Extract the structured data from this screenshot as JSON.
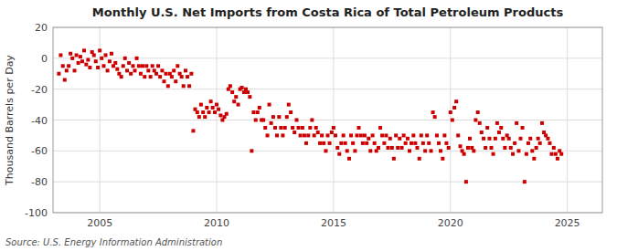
{
  "chart_data": {
    "type": "scatter",
    "title": "Monthly U.S. Net Imports from Costa Rica of Total Petroleum Products",
    "y_label": "Thousand Barrels per Day",
    "annotation": "Source: U.S. Energy Information Administration",
    "color": "#cc0000",
    "marker": "square",
    "grid": true,
    "xlim": [
      2003.0,
      2026.5
    ],
    "ylim": [
      -100,
      20
    ],
    "xticks": [
      2005,
      2010,
      2015,
      2020,
      2025
    ],
    "yticks": [
      -100,
      -80,
      -60,
      -40,
      -20,
      0,
      20
    ],
    "x": [
      2003.25,
      2003.33,
      2003.42,
      2003.5,
      2003.58,
      2003.67,
      2003.75,
      2003.83,
      2003.92,
      2004.0,
      2004.08,
      2004.17,
      2004.25,
      2004.33,
      2004.42,
      2004.5,
      2004.58,
      2004.67,
      2004.75,
      2004.83,
      2004.92,
      2005.0,
      2005.08,
      2005.17,
      2005.25,
      2005.33,
      2005.42,
      2005.5,
      2005.58,
      2005.67,
      2005.75,
      2005.83,
      2005.92,
      2006.0,
      2006.08,
      2006.17,
      2006.25,
      2006.33,
      2006.42,
      2006.5,
      2006.58,
      2006.67,
      2006.75,
      2006.83,
      2006.92,
      2007.0,
      2007.08,
      2007.17,
      2007.25,
      2007.33,
      2007.42,
      2007.5,
      2007.58,
      2007.67,
      2007.75,
      2007.83,
      2007.92,
      2008.0,
      2008.08,
      2008.17,
      2008.25,
      2008.33,
      2008.42,
      2008.5,
      2008.58,
      2008.67,
      2008.75,
      2008.83,
      2008.92,
      2009.0,
      2009.08,
      2009.17,
      2009.25,
      2009.33,
      2009.42,
      2009.5,
      2009.58,
      2009.67,
      2009.75,
      2009.83,
      2009.92,
      2010.0,
      2010.08,
      2010.17,
      2010.25,
      2010.33,
      2010.42,
      2010.5,
      2010.58,
      2010.67,
      2010.75,
      2010.83,
      2010.92,
      2011.0,
      2011.08,
      2011.17,
      2011.25,
      2011.33,
      2011.42,
      2011.5,
      2011.58,
      2011.67,
      2011.75,
      2011.83,
      2011.92,
      2012.0,
      2012.08,
      2012.17,
      2012.25,
      2012.33,
      2012.42,
      2012.5,
      2012.58,
      2012.67,
      2012.75,
      2012.83,
      2012.92,
      2013.0,
      2013.08,
      2013.17,
      2013.25,
      2013.33,
      2013.42,
      2013.5,
      2013.58,
      2013.67,
      2013.75,
      2013.83,
      2013.92,
      2014.0,
      2014.08,
      2014.17,
      2014.25,
      2014.33,
      2014.42,
      2014.5,
      2014.58,
      2014.67,
      2014.75,
      2014.83,
      2014.92,
      2015.0,
      2015.08,
      2015.17,
      2015.25,
      2015.33,
      2015.42,
      2015.5,
      2015.58,
      2015.67,
      2015.75,
      2015.83,
      2015.92,
      2016.0,
      2016.08,
      2016.17,
      2016.25,
      2016.33,
      2016.42,
      2016.5,
      2016.58,
      2016.67,
      2016.75,
      2016.83,
      2016.92,
      2017.0,
      2017.08,
      2017.17,
      2017.25,
      2017.33,
      2017.42,
      2017.5,
      2017.58,
      2017.67,
      2017.75,
      2017.83,
      2017.92,
      2018.0,
      2018.08,
      2018.17,
      2018.25,
      2018.33,
      2018.42,
      2018.5,
      2018.58,
      2018.67,
      2018.75,
      2018.83,
      2018.92,
      2019.0,
      2019.08,
      2019.17,
      2019.25,
      2019.33,
      2019.42,
      2019.5,
      2019.58,
      2019.67,
      2019.75,
      2019.83,
      2019.92,
      2020.0,
      2020.08,
      2020.17,
      2020.25,
      2020.33,
      2020.42,
      2020.5,
      2020.58,
      2020.67,
      2020.75,
      2020.83,
      2020.92,
      2021.0,
      2021.08,
      2021.17,
      2021.25,
      2021.33,
      2021.42,
      2021.5,
      2021.58,
      2021.67,
      2021.75,
      2021.83,
      2021.92,
      2022.0,
      2022.08,
      2022.17,
      2022.25,
      2022.33,
      2022.42,
      2022.5,
      2022.58,
      2022.67,
      2022.75,
      2022.83,
      2022.92,
      2023.0,
      2023.08,
      2023.17,
      2023.25,
      2023.33,
      2023.42,
      2023.5,
      2023.58,
      2023.67,
      2023.75,
      2023.83,
      2023.92,
      2024.0,
      2024.08,
      2024.17,
      2024.25,
      2024.33,
      2024.42,
      2024.5,
      2024.58,
      2024.67,
      2024.75
    ],
    "values": [
      -10,
      2,
      -5,
      -14,
      -8,
      -5,
      3,
      0,
      -8,
      2,
      -3,
      1,
      -2,
      5,
      -4,
      -1,
      -6,
      4,
      2,
      -2,
      -6,
      5,
      0,
      -5,
      2,
      -8,
      -2,
      3,
      -5,
      -3,
      -7,
      -10,
      -12,
      -5,
      0,
      -8,
      -3,
      -10,
      -5,
      -8,
      0,
      -5,
      -10,
      -5,
      -12,
      -5,
      -8,
      -12,
      -5,
      -8,
      -10,
      -5,
      -12,
      -8,
      -15,
      -10,
      -18,
      -10,
      -12,
      -8,
      -15,
      -5,
      -10,
      -12,
      -18,
      -8,
      -12,
      -18,
      -10,
      -47,
      -33,
      -35,
      -38,
      -30,
      -35,
      -38,
      -32,
      -35,
      -28,
      -32,
      -35,
      -30,
      -33,
      -37,
      -40,
      -38,
      -36,
      -20,
      -18,
      -22,
      -28,
      -25,
      -30,
      -20,
      -19,
      -22,
      -20,
      -22,
      -25,
      -60,
      -35,
      -40,
      -35,
      -32,
      -40,
      -40,
      -45,
      -50,
      -30,
      -42,
      -38,
      -45,
      -50,
      -38,
      -45,
      -50,
      -45,
      -38,
      -30,
      -35,
      -45,
      -48,
      -40,
      -45,
      -50,
      -45,
      -50,
      -55,
      -50,
      -45,
      -40,
      -50,
      -45,
      -48,
      -55,
      -50,
      -55,
      -60,
      -50,
      -55,
      -48,
      -45,
      -50,
      -58,
      -62,
      -55,
      -50,
      -55,
      -60,
      -65,
      -50,
      -55,
      -60,
      -50,
      -45,
      -50,
      -55,
      -50,
      -55,
      -52,
      -60,
      -50,
      -55,
      -60,
      -58,
      -45,
      -50,
      -55,
      -50,
      -58,
      -52,
      -58,
      -65,
      -50,
      -58,
      -52,
      -58,
      -50,
      -55,
      -52,
      -60,
      -55,
      -50,
      -55,
      -58,
      -65,
      -50,
      -55,
      -60,
      -50,
      -55,
      -60,
      -35,
      -38,
      -50,
      -55,
      -60,
      -65,
      -50,
      -55,
      -58,
      -35,
      -40,
      -32,
      -28,
      -50,
      -57,
      -60,
      -62,
      -80,
      -58,
      -52,
      -58,
      -60,
      -40,
      -35,
      -42,
      -48,
      -52,
      -58,
      -45,
      -52,
      -58,
      -62,
      -52,
      -42,
      -48,
      -45,
      -52,
      -58,
      -50,
      -52,
      -58,
      -62,
      -55,
      -42,
      -60,
      -52,
      -45,
      -80,
      -62,
      -55,
      -52,
      -60,
      -65,
      -58,
      -52,
      -55,
      -42,
      -48,
      -50,
      -52,
      -55,
      -62,
      -58,
      -62,
      -65,
      -60,
      -62
    ]
  }
}
